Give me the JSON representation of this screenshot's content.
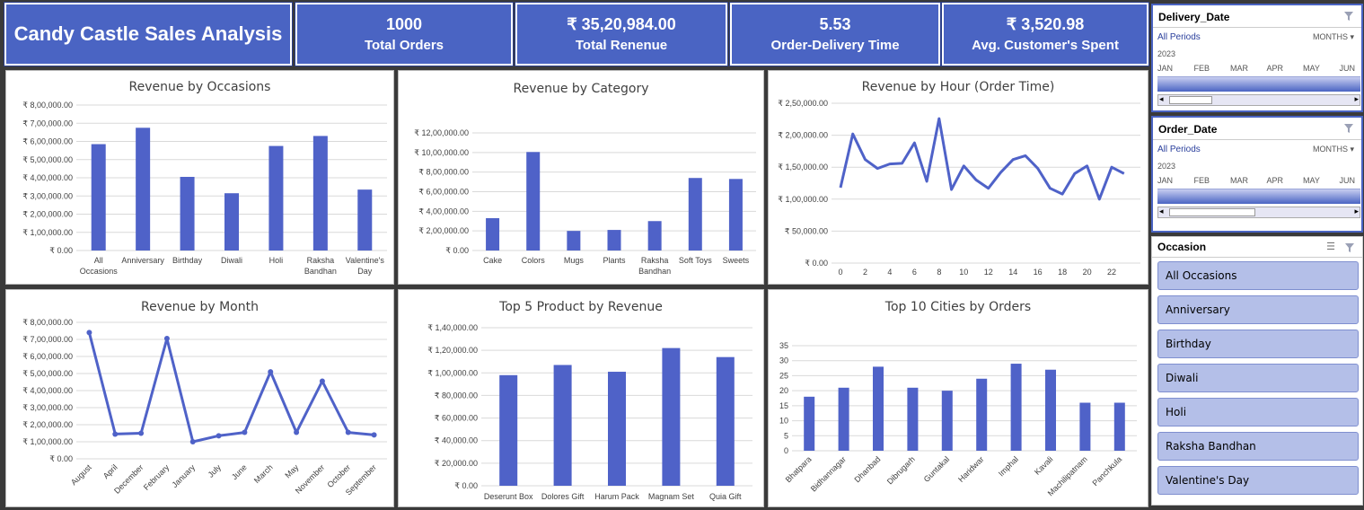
{
  "header": {
    "title": "Candy Castle Sales Analysis",
    "kpis": [
      {
        "value": "1000",
        "label": "Total Orders"
      },
      {
        "value": "₹ 35,20,984.00",
        "label": "Total Renenue"
      },
      {
        "value": "5.53",
        "label": "Order-Delivery Time"
      },
      {
        "value": "₹ 3,520.98",
        "label": "Avg. Customer's Spent"
      }
    ]
  },
  "colors": {
    "accent": "#4a64c3",
    "series": "#4f62c8",
    "panel": "#ffffff"
  },
  "slicers": {
    "delivery": {
      "title": "Delivery_Date",
      "periods": "All Periods",
      "mode": "MONTHS",
      "year": "2023",
      "months": [
        "JAN",
        "FEB",
        "MAR",
        "APR",
        "MAY",
        "JUN"
      ]
    },
    "order": {
      "title": "Order_Date",
      "periods": "All Periods",
      "mode": "MONTHS",
      "year": "2023",
      "months": [
        "JAN",
        "FEB",
        "MAR",
        "APR",
        "MAY",
        "JUN"
      ]
    },
    "occasion": {
      "title": "Occasion",
      "items": [
        "All Occasions",
        "Anniversary",
        "Birthday",
        "Diwali",
        "Holi",
        "Raksha Bandhan",
        "Valentine's Day"
      ]
    }
  },
  "chart_data": [
    {
      "id": "occasions",
      "type": "bar",
      "title": "Revenue by Occasions",
      "categories": [
        "All Occasions",
        "Anniversary",
        "Birthday",
        "Diwali",
        "Holi",
        "Raksha Bandhan",
        "Valentine's Day"
      ],
      "values": [
        585000,
        675000,
        405000,
        315000,
        575000,
        630000,
        335000
      ],
      "ylim": [
        0,
        800000
      ],
      "yticks": [
        "₹ 0.00",
        "₹ 1,00,000.00",
        "₹ 2,00,000.00",
        "₹ 3,00,000.00",
        "₹ 4,00,000.00",
        "₹ 5,00,000.00",
        "₹ 6,00,000.00",
        "₹ 7,00,000.00",
        "₹ 8,00,000.00"
      ]
    },
    {
      "id": "category",
      "type": "bar",
      "title": "Revenue by Category",
      "categories": [
        "Cake",
        "Colors",
        "Mugs",
        "Plants",
        "Raksha Bandhan",
        "Soft Toys",
        "Sweets"
      ],
      "values": [
        330000,
        1005000,
        200000,
        210000,
        300000,
        740000,
        730000
      ],
      "ylim": [
        0,
        1200000
      ],
      "yticks": [
        "₹ 0.00",
        "₹ 2,00,000.00",
        "₹ 4,00,000.00",
        "₹ 6,00,000.00",
        "₹ 8,00,000.00",
        "₹ 10,00,000.00",
        "₹ 12,00,000.00"
      ]
    },
    {
      "id": "hour",
      "type": "line",
      "title": "Revenue by Hour (Order Time)",
      "x": [
        0,
        1,
        2,
        3,
        4,
        5,
        6,
        7,
        8,
        9,
        10,
        11,
        12,
        13,
        14,
        15,
        16,
        17,
        18,
        19,
        20,
        21,
        22,
        23
      ],
      "values": [
        118000,
        202000,
        162000,
        148000,
        155000,
        156000,
        188000,
        128000,
        226000,
        115000,
        152000,
        130000,
        117000,
        142000,
        162000,
        168000,
        148000,
        117000,
        108000,
        140000,
        152000,
        100000,
        150000,
        140000
      ],
      "ylim": [
        0,
        250000
      ],
      "xticks": [
        "0",
        "2",
        "4",
        "6",
        "8",
        "10",
        "12",
        "14",
        "16",
        "18",
        "20",
        "22"
      ],
      "yticks": [
        "₹ 0.00",
        "₹ 50,000.00",
        "₹ 1,00,000.00",
        "₹ 1,50,000.00",
        "₹ 2,00,000.00",
        "₹ 2,50,000.00"
      ]
    },
    {
      "id": "month",
      "type": "line",
      "title": "Revenue by Month",
      "categories": [
        "August",
        "April",
        "December",
        "February",
        "January",
        "July",
        "June",
        "March",
        "May",
        "November",
        "October",
        "September"
      ],
      "values": [
        740000,
        145000,
        150000,
        705000,
        100000,
        135000,
        155000,
        510000,
        155000,
        455000,
        155000,
        140000
      ],
      "ylim": [
        0,
        800000
      ],
      "yticks": [
        "₹ 0.00",
        "₹ 1,00,000.00",
        "₹ 2,00,000.00",
        "₹ 3,00,000.00",
        "₹ 4,00,000.00",
        "₹ 5,00,000.00",
        "₹ 6,00,000.00",
        "₹ 7,00,000.00",
        "₹ 8,00,000.00"
      ]
    },
    {
      "id": "products",
      "type": "bar",
      "title": "Top 5 Product by Revenue",
      "categories": [
        "Deserunt Box",
        "Dolores Gift",
        "Harum Pack",
        "Magnam Set",
        "Quia Gift"
      ],
      "values": [
        98000,
        107000,
        101000,
        122000,
        114000
      ],
      "ylim": [
        0,
        140000
      ],
      "yticks": [
        "₹ 0.00",
        "₹ 20,000.00",
        "₹ 40,000.00",
        "₹ 60,000.00",
        "₹ 80,000.00",
        "₹ 1,00,000.00",
        "₹ 1,20,000.00",
        "₹ 1,40,000.00"
      ]
    },
    {
      "id": "cities",
      "type": "bar",
      "title": "Top 10 Cities by Orders",
      "categories": [
        "Bhatpara",
        "Bidhannagar",
        "Dhanbad",
        "Dibrugarh",
        "Guntakal",
        "Haridwar",
        "Imphal",
        "Kavali",
        "Machilipatnam",
        "Panchkula"
      ],
      "values": [
        18,
        21,
        28,
        21,
        20,
        24,
        29,
        27,
        16,
        16
      ],
      "ylim": [
        0,
        35
      ],
      "yticks": [
        "0",
        "5",
        "10",
        "15",
        "20",
        "25",
        "30",
        "35"
      ]
    }
  ]
}
